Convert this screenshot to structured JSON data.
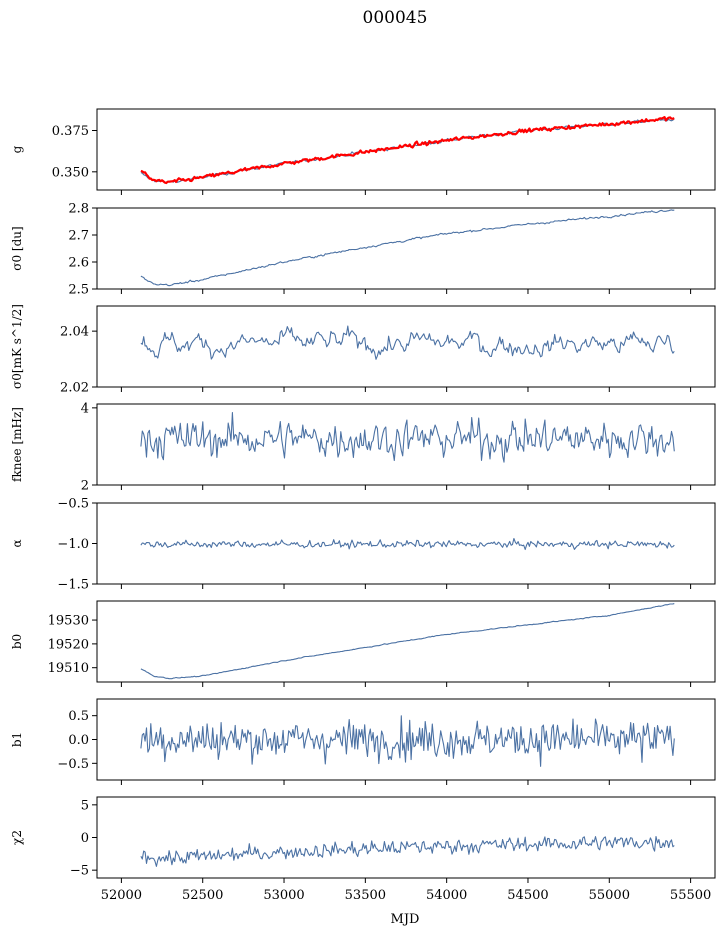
{
  "title": "000045",
  "xlabel": "MJD",
  "colors": {
    "series": "#4c72a4",
    "overlay": "#ff0000"
  },
  "chart_data": {
    "type": "line",
    "x_range": [
      52120,
      55400
    ],
    "xlim": [
      51850,
      55650
    ],
    "xticks": [
      52000,
      52500,
      53000,
      53500,
      54000,
      54500,
      55000,
      55500
    ],
    "xtick_labels": [
      "52000",
      "52500",
      "53000",
      "53500",
      "54000",
      "54500",
      "55000",
      "55500"
    ],
    "panels": [
      {
        "ylabel": "g",
        "ylim": [
          0.339,
          0.388
        ],
        "yticks": [
          0.35,
          0.375
        ],
        "ytick_labels": [
          "0.350",
          "0.375"
        ],
        "series": [
          {
            "kind": "trend",
            "color": "series",
            "noise": 0.0006,
            "smooth": 0.5,
            "points": [
              [
                52120,
                0.349
              ],
              [
                52180,
                0.3455
              ],
              [
                52270,
                0.3435
              ],
              [
                52400,
                0.345
              ],
              [
                52700,
                0.35
              ],
              [
                53000,
                0.355
              ],
              [
                53500,
                0.362
              ],
              [
                54000,
                0.369
              ],
              [
                54500,
                0.375
              ],
              [
                55000,
                0.379
              ],
              [
                55450,
                0.382
              ]
            ]
          },
          {
            "kind": "trend",
            "color": "overlay",
            "noise": 0.0008,
            "smooth": 0.3,
            "width": 2.2,
            "points": [
              [
                52120,
                0.351
              ],
              [
                52180,
                0.3455
              ],
              [
                52270,
                0.3435
              ],
              [
                52400,
                0.345
              ],
              [
                52700,
                0.35
              ],
              [
                53000,
                0.355
              ],
              [
                53500,
                0.362
              ],
              [
                54000,
                0.369
              ],
              [
                54500,
                0.375
              ],
              [
                55000,
                0.379
              ],
              [
                55450,
                0.383
              ]
            ]
          }
        ]
      },
      {
        "ylabel": "σ0 [du]",
        "ylim": [
          2.5,
          2.8
        ],
        "yticks": [
          2.5,
          2.6,
          2.7,
          2.8
        ],
        "ytick_labels": [
          "2.5",
          "2.6",
          "2.7",
          "2.8"
        ],
        "series": [
          {
            "kind": "trend",
            "color": "series",
            "noise": 0.0025,
            "smooth": 0.5,
            "points": [
              [
                52120,
                2.545
              ],
              [
                52200,
                2.518
              ],
              [
                52300,
                2.515
              ],
              [
                52500,
                2.535
              ],
              [
                53000,
                2.6
              ],
              [
                53500,
                2.655
              ],
              [
                54000,
                2.705
              ],
              [
                54500,
                2.74
              ],
              [
                55000,
                2.77
              ],
              [
                55400,
                2.795
              ]
            ]
          }
        ]
      },
      {
        "ylabel": "σ0[mK s^1/2]",
        "ylim": [
          2.02,
          2.049
        ],
        "yticks": [
          2.02,
          2.04
        ],
        "ytick_labels": [
          "2.02",
          "2.04"
        ],
        "series": [
          {
            "kind": "noise",
            "color": "series",
            "mean": 2.0355,
            "amp": 0.0035,
            "smooth": 0.8,
            "min": 2.0255,
            "max": 2.0465
          }
        ]
      },
      {
        "ylabel": "fknee [mHz]",
        "ylim": [
          2,
          4.1
        ],
        "yticks": [
          2,
          4
        ],
        "ytick_labels": [
          "2",
          "4"
        ],
        "series": [
          {
            "kind": "noise",
            "color": "series",
            "mean": 3.2,
            "amp": 0.38,
            "smooth": 0.3,
            "min": 2.35,
            "max": 4.1
          }
        ]
      },
      {
        "ylabel": "α",
        "ylim": [
          -1.5,
          -0.5
        ],
        "yticks": [
          -1.5,
          -1.0,
          -0.5
        ],
        "ytick_labels": [
          "−1.5",
          "−1.0",
          "−0.5"
        ],
        "series": [
          {
            "kind": "noise",
            "color": "series",
            "mean": -1.01,
            "amp": 0.035,
            "smooth": 0.2,
            "min": -1.13,
            "max": -0.88
          }
        ]
      },
      {
        "ylabel": "b0",
        "ylim": [
          19504,
          19538
        ],
        "yticks": [
          19510,
          19520,
          19530
        ],
        "ytick_labels": [
          "19510",
          "19520",
          "19530"
        ],
        "series": [
          {
            "kind": "trend",
            "color": "series",
            "noise": 0.12,
            "smooth": 0.5,
            "points": [
              [
                52120,
                19509.5
              ],
              [
                52200,
                19506.5
              ],
              [
                52300,
                19505.5
              ],
              [
                52500,
                19506.5
              ],
              [
                53000,
                19513
              ],
              [
                53500,
                19518.5
              ],
              [
                54000,
                19524
              ],
              [
                54500,
                19528
              ],
              [
                55000,
                19532
              ],
              [
                55400,
                19537
              ]
            ]
          }
        ]
      },
      {
        "ylabel": "b1",
        "ylim": [
          -0.85,
          0.85
        ],
        "yticks": [
          -0.5,
          0.0,
          0.5
        ],
        "ytick_labels": [
          "−0.5",
          "0.0",
          "0.5"
        ],
        "series": [
          {
            "kind": "noise",
            "color": "series",
            "mean": 0.0,
            "amp": 0.28,
            "smooth": 0.0,
            "min": -0.75,
            "max": 0.72
          }
        ]
      },
      {
        "ylabel": "χ2",
        "ylim": [
          -6.2,
          6.2
        ],
        "yticks": [
          -5,
          0,
          5
        ],
        "ytick_labels": [
          "−5",
          "0",
          "5"
        ],
        "series": [
          {
            "kind": "noisytrend",
            "color": "series",
            "amp": 0.8,
            "smooth": 0.2,
            "points": [
              [
                52120,
                -2.8
              ],
              [
                52300,
                -3.2
              ],
              [
                53000,
                -2.2
              ],
              [
                54000,
                -1.3
              ],
              [
                55000,
                -0.8
              ],
              [
                55400,
                -0.6
              ]
            ],
            "min": -5.8,
            "max": 1.5
          }
        ]
      }
    ]
  }
}
